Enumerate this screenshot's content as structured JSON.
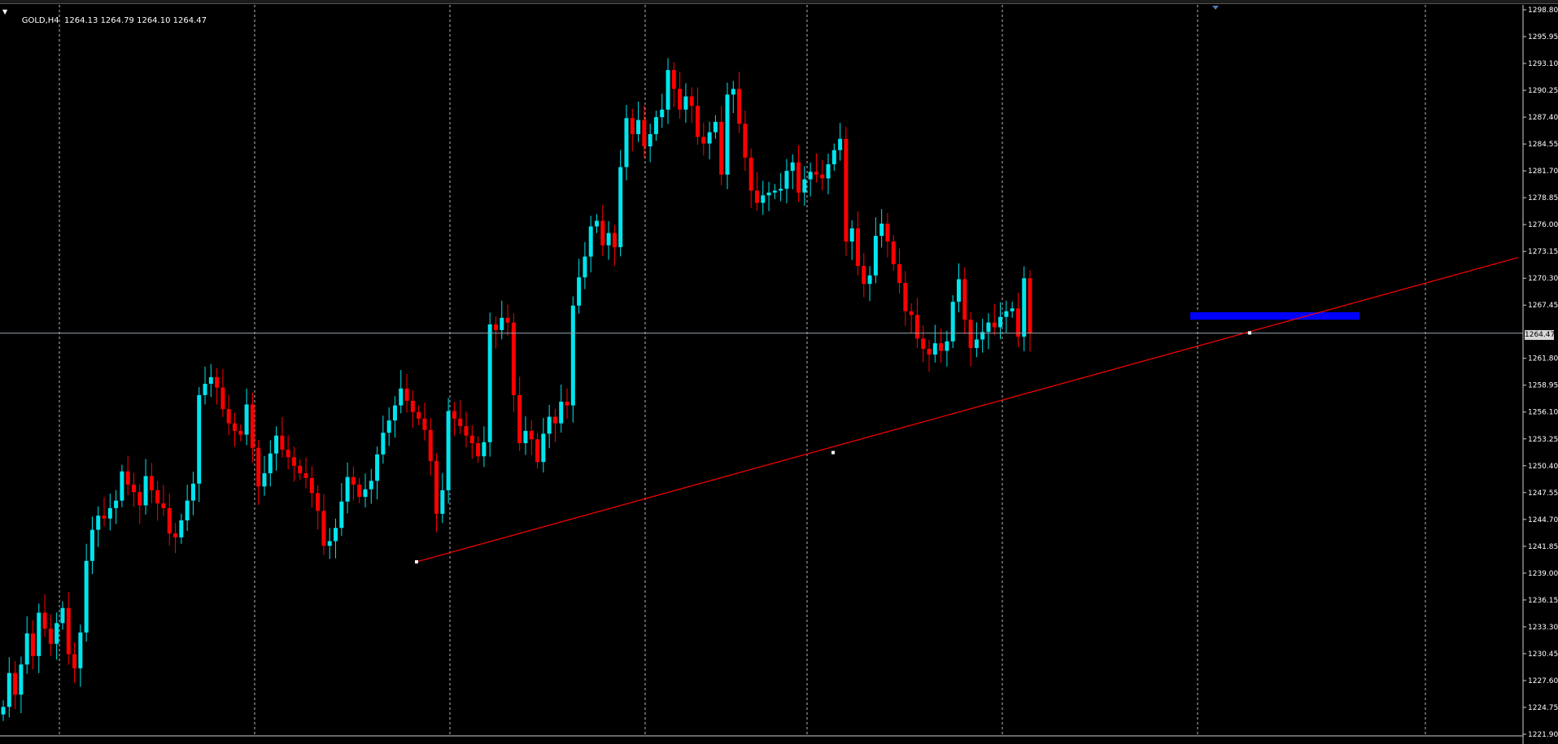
{
  "chart_header": {
    "symbol_timeframe": "GOLD,H4",
    "ohlc_text": "1264.13 1264.79 1264.10 1264.47"
  },
  "current_price_tag": "1264.47",
  "colors": {
    "background": "#000000",
    "bull_candle": "#00e5ee",
    "bear_candle": "#ff0000",
    "grid": "#d9d9d9",
    "trendline": "#ff0000",
    "zone": "#0000ff",
    "price_line": "#9aa6b0"
  },
  "chart_data": {
    "type": "candlestick",
    "symbol": "GOLD",
    "timeframe": "H4",
    "y_axis": {
      "min": 1221.9,
      "max": 1298.8,
      "ticks": [
        "1298.80",
        "1295.95",
        "1293.10",
        "1290.25",
        "1287.40",
        "1284.55",
        "1281.70",
        "1278.85",
        "1276.00",
        "1273.15",
        "1270.30",
        "1267.45",
        "1264.47",
        "1261.80",
        "1258.95",
        "1256.10",
        "1253.25",
        "1250.40",
        "1247.55",
        "1244.70",
        "1241.85",
        "1239.00",
        "1236.15",
        "1233.30",
        "1230.45",
        "1227.60",
        "1224.75",
        "1221.90"
      ]
    },
    "last_price": 1264.47,
    "candle_closes": [
      1224.8,
      1228.4,
      1226.1,
      1229.3,
      1232.6,
      1230.2,
      1234.8,
      1233.1,
      1231.5,
      1233.7,
      1235.3,
      1230.4,
      1228.9,
      1232.7,
      1240.3,
      1243.6,
      1245.1,
      1244.8,
      1245.9,
      1246.7,
      1249.8,
      1248.4,
      1247.6,
      1246.2,
      1249.3,
      1247.8,
      1246.4,
      1245.9,
      1243.2,
      1242.8,
      1244.6,
      1246.7,
      1248.5,
      1257.9,
      1259.1,
      1259.8,
      1258.7,
      1256.4,
      1254.9,
      1254.1,
      1253.7,
      1256.9,
      1252.3,
      1248.2,
      1249.6,
      1251.7,
      1253.6,
      1252.1,
      1251.3,
      1250.4,
      1249.6,
      1249.1,
      1247.5,
      1245.6,
      1241.9,
      1242.4,
      1243.8,
      1246.6,
      1249.2,
      1248.4,
      1247.1,
      1247.9,
      1248.8,
      1251.6,
      1253.9,
      1255.2,
      1256.8,
      1258.6,
      1257.3,
      1256.1,
      1255.4,
      1254.2,
      1250.9,
      1245.3,
      1247.8,
      1256.2,
      1255.4,
      1254.6,
      1253.6,
      1252.8,
      1251.4,
      1252.9,
      1265.4,
      1264.8,
      1266.1,
      1265.6,
      1257.9,
      1252.8,
      1254.1,
      1253.2,
      1250.8,
      1253.8,
      1255.6,
      1254.9,
      1257.2,
      1256.8,
      1267.4,
      1270.4,
      1272.6,
      1275.8,
      1276.4,
      1273.8,
      1275.1,
      1273.6,
      1282.1,
      1287.3,
      1285.6,
      1287.1,
      1284.3,
      1285.6,
      1287.4,
      1288.2,
      1292.4,
      1290.4,
      1288.2,
      1289.6,
      1288.6,
      1285.3,
      1284.6,
      1285.8,
      1286.9,
      1281.3,
      1289.8,
      1290.4,
      1286.7,
      1283.1,
      1279.6,
      1278.3,
      1279.1,
      1279.4,
      1279.6,
      1279.8,
      1281.7,
      1282.6,
      1279.4,
      1280.8,
      1281.6,
      1281.3,
      1280.9,
      1282.4,
      1283.9,
      1285.1,
      1274.2,
      1275.6,
      1271.6,
      1269.7,
      1270.6,
      1274.8,
      1276.1,
      1274.2,
      1271.8,
      1269.8,
      1266.8,
      1266.4,
      1263.9,
      1262.8,
      1262.2,
      1263.4,
      1262.6,
      1263.6,
      1267.8,
      1270.2,
      1265.9,
      1262.9,
      1263.8,
      1264.6,
      1265.6,
      1265.1,
      1266.2,
      1266.8,
      1267.1,
      1264.1,
      1270.3,
      1264.47
    ],
    "trendline": {
      "from": 1240.2,
      "to": 1272.5,
      "anchor_points": [
        1240.2,
        1251.8,
        1264.5
      ]
    },
    "horizontal_zone": {
      "from": 1265.9,
      "to": 1266.7
    },
    "x_tick_labels": []
  }
}
